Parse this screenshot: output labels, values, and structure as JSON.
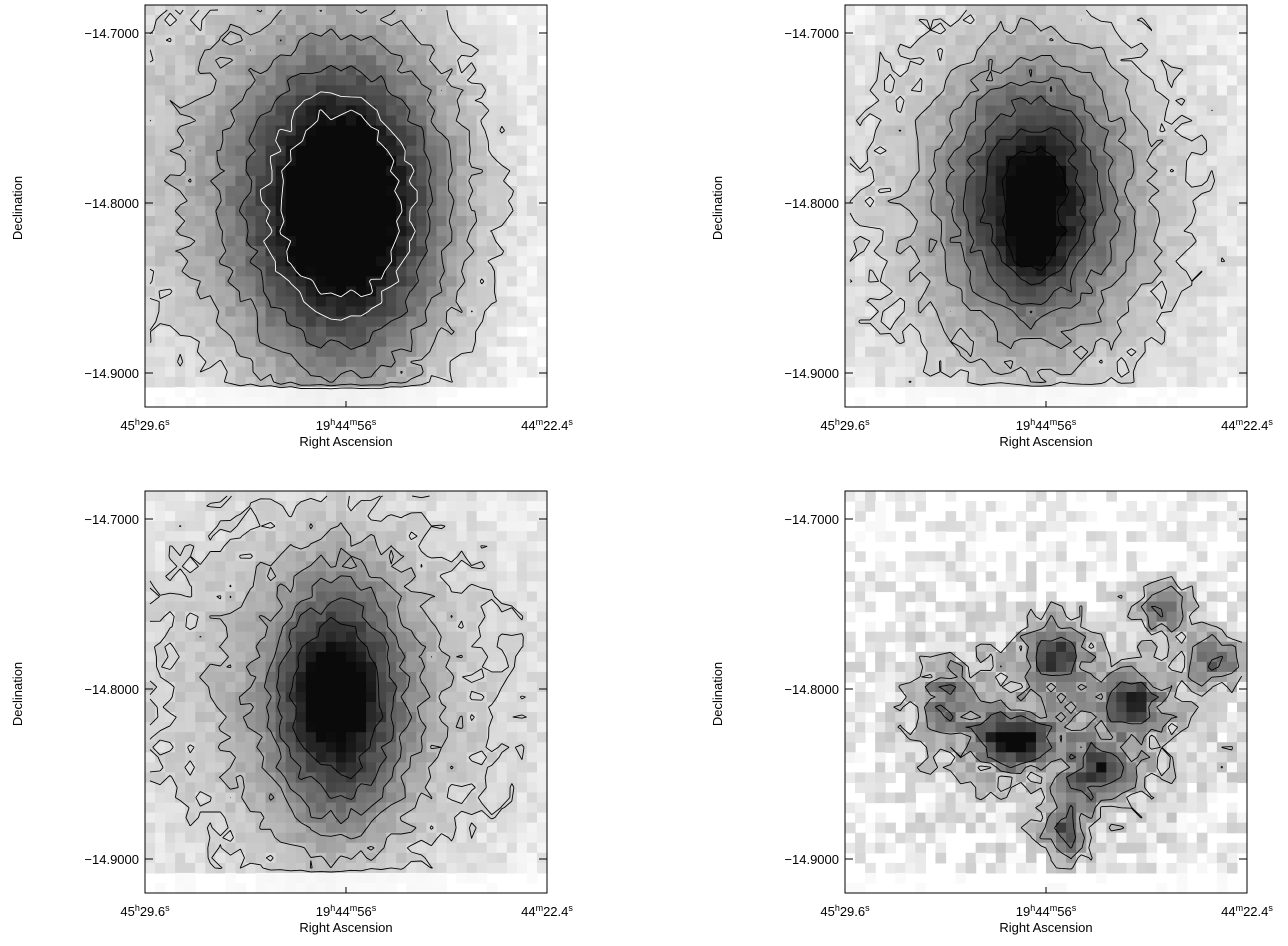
{
  "chart_data": [
    {
      "type": "heatmap",
      "panel": "top-left",
      "xlabel": "Right Ascension",
      "ylabel": "Declination",
      "x_ticks": [
        {
          "major": "45",
          "unit1": "h",
          "minor": "29.6",
          "unit2": "s"
        },
        {
          "major": "19",
          "unit1": "h",
          "mid": "44",
          "unit_mid": "m",
          "minor": "56",
          "unit2": "s"
        },
        {
          "major": "44",
          "unit1": "m",
          "minor": "22.4",
          "unit2": "s"
        }
      ],
      "y_ticks": [
        "-14.7000",
        "-14.8000",
        "-14.9000"
      ],
      "ylim": [
        -14.9,
        -14.7
      ],
      "grid": false,
      "blobs": [
        {
          "cx": 0.5,
          "cy": 0.52,
          "sx": 0.17,
          "sy": 0.27,
          "a": 1.0
        },
        {
          "cx": 0.47,
          "cy": 0.47,
          "sx": 0.06,
          "sy": 0.1,
          "a": 0.35
        },
        {
          "cx": 0.3,
          "cy": 0.4,
          "sx": 0.4,
          "sy": 0.42,
          "a": 0.3
        }
      ],
      "contour_levels": [
        0.18,
        0.3,
        0.45,
        0.62,
        0.8,
        0.95
      ]
    },
    {
      "type": "heatmap",
      "panel": "top-right",
      "xlabel": "Right Ascension",
      "ylabel": "Declination",
      "x_ticks": [
        {
          "major": "45",
          "unit1": "h",
          "minor": "29.6",
          "unit2": "s"
        },
        {
          "major": "19",
          "unit1": "h",
          "mid": "44",
          "unit_mid": "m",
          "minor": "56",
          "unit2": "s"
        },
        {
          "major": "44",
          "unit1": "m",
          "minor": "22.4",
          "unit2": "s"
        }
      ],
      "y_ticks": [
        "-14.7000",
        "-14.8000",
        "-14.9000"
      ],
      "ylim": [
        -14.9,
        -14.7
      ],
      "grid": false,
      "blobs": [
        {
          "cx": 0.47,
          "cy": 0.48,
          "sx": 0.14,
          "sy": 0.22,
          "a": 0.75
        },
        {
          "cx": 0.47,
          "cy": 0.45,
          "sx": 0.03,
          "sy": 0.04,
          "a": 0.45
        },
        {
          "cx": 0.47,
          "cy": 0.6,
          "sx": 0.04,
          "sy": 0.04,
          "a": 0.3
        },
        {
          "cx": 0.45,
          "cy": 0.5,
          "sx": 0.38,
          "sy": 0.4,
          "a": 0.3
        }
      ],
      "contour_levels": [
        0.18,
        0.28,
        0.4,
        0.52,
        0.65,
        0.8,
        0.95
      ]
    },
    {
      "type": "heatmap",
      "panel": "bottom-left",
      "xlabel": "Right Ascension",
      "ylabel": "Declination",
      "x_ticks": [
        {
          "major": "45",
          "unit1": "h",
          "minor": "29.6",
          "unit2": "s"
        },
        {
          "major": "19",
          "unit1": "h",
          "mid": "44",
          "unit_mid": "m",
          "minor": "56",
          "unit2": "s"
        },
        {
          "major": "44",
          "unit1": "m",
          "minor": "22.4",
          "unit2": "s"
        }
      ],
      "y_ticks": [
        "-14.7000",
        "-14.8000",
        "-14.9000"
      ],
      "ylim": [
        -14.9,
        -14.7
      ],
      "grid": false,
      "blobs": [
        {
          "cx": 0.48,
          "cy": 0.52,
          "sx": 0.11,
          "sy": 0.2,
          "a": 0.8
        },
        {
          "cx": 0.45,
          "cy": 0.5,
          "sx": 0.03,
          "sy": 0.05,
          "a": 0.35
        },
        {
          "cx": 0.45,
          "cy": 0.5,
          "sx": 0.4,
          "sy": 0.4,
          "a": 0.32
        }
      ],
      "contour_levels": [
        0.18,
        0.28,
        0.4,
        0.52,
        0.65,
        0.8
      ]
    },
    {
      "type": "heatmap",
      "panel": "bottom-right",
      "xlabel": "Right Ascension",
      "ylabel": "Declination",
      "x_ticks": [
        {
          "major": "45",
          "unit1": "h",
          "minor": "29.6",
          "unit2": "s"
        },
        {
          "major": "19",
          "unit1": "h",
          "mid": "44",
          "unit_mid": "m",
          "minor": "56",
          "unit2": "s"
        },
        {
          "major": "44",
          "unit1": "m",
          "minor": "22.4",
          "unit2": "s"
        }
      ],
      "y_ticks": [
        "-14.7000",
        "-14.8000",
        "-14.9000"
      ],
      "ylim": [
        -14.9,
        -14.7
      ],
      "grid": false,
      "blobs": [
        {
          "cx": 0.42,
          "cy": 0.62,
          "sx": 0.06,
          "sy": 0.04,
          "a": 0.85
        },
        {
          "cx": 0.52,
          "cy": 0.4,
          "sx": 0.05,
          "sy": 0.05,
          "a": 0.6
        },
        {
          "cx": 0.63,
          "cy": 0.7,
          "sx": 0.05,
          "sy": 0.05,
          "a": 0.6
        },
        {
          "cx": 0.72,
          "cy": 0.52,
          "sx": 0.05,
          "sy": 0.05,
          "a": 0.55
        },
        {
          "cx": 0.8,
          "cy": 0.29,
          "sx": 0.05,
          "sy": 0.04,
          "a": 0.55
        },
        {
          "cx": 0.92,
          "cy": 0.42,
          "sx": 0.04,
          "sy": 0.04,
          "a": 0.6
        },
        {
          "cx": 0.55,
          "cy": 0.85,
          "sx": 0.04,
          "sy": 0.05,
          "a": 0.55
        },
        {
          "cx": 0.25,
          "cy": 0.52,
          "sx": 0.05,
          "sy": 0.06,
          "a": 0.4
        },
        {
          "cx": 0.55,
          "cy": 0.57,
          "sx": 0.3,
          "sy": 0.2,
          "a": 0.35
        }
      ],
      "noise": 0.3,
      "contour_levels": [
        0.25,
        0.4,
        0.6
      ]
    }
  ]
}
